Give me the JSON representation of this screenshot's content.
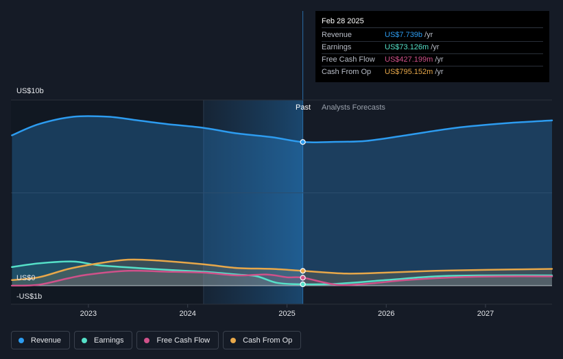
{
  "chart_data": {
    "type": "area",
    "y_labels": {
      "top": "US$10b",
      "zero": "US$0",
      "bottom": "-US$1b"
    },
    "ylim": [
      -1,
      10
    ],
    "x_ticks": [
      "2023",
      "2024",
      "2025",
      "2026",
      "2027"
    ],
    "x_tick_values": [
      2023,
      2024,
      2025,
      2026,
      2027
    ],
    "xlim": [
      2022.22,
      2027.67
    ],
    "past_label": "Past",
    "forecast_label": "Analysts Forecasts",
    "past_region_start": 2024.16,
    "divider": 2025.16,
    "series": [
      {
        "name": "Revenue",
        "color": "#2d9cf0",
        "points": [
          [
            2022.23,
            8.1
          ],
          [
            2022.5,
            8.7
          ],
          [
            2022.85,
            9.1
          ],
          [
            2023.2,
            9.1
          ],
          [
            2023.5,
            8.9
          ],
          [
            2023.8,
            8.7
          ],
          [
            2024.16,
            8.5
          ],
          [
            2024.5,
            8.2
          ],
          [
            2024.85,
            8.0
          ],
          [
            2025.16,
            7.739
          ],
          [
            2025.5,
            7.75
          ],
          [
            2025.8,
            7.8
          ],
          [
            2026.2,
            8.1
          ],
          [
            2026.7,
            8.5
          ],
          [
            2027.2,
            8.75
          ],
          [
            2027.67,
            8.9
          ]
        ]
      },
      {
        "name": "Earnings",
        "color": "#55e0c8",
        "points": [
          [
            2022.23,
            1.0
          ],
          [
            2022.5,
            1.2
          ],
          [
            2022.85,
            1.3
          ],
          [
            2023.1,
            1.1
          ],
          [
            2023.5,
            0.95
          ],
          [
            2023.8,
            0.85
          ],
          [
            2024.16,
            0.75
          ],
          [
            2024.5,
            0.6
          ],
          [
            2024.7,
            0.5
          ],
          [
            2024.9,
            0.15
          ],
          [
            2025.16,
            0.073
          ],
          [
            2025.5,
            0.1
          ],
          [
            2026.0,
            0.3
          ],
          [
            2026.5,
            0.5
          ],
          [
            2027.0,
            0.55
          ],
          [
            2027.67,
            0.55
          ]
        ]
      },
      {
        "name": "Free Cash Flow",
        "color": "#d0518a",
        "points": [
          [
            2022.23,
            0.0
          ],
          [
            2022.5,
            0.05
          ],
          [
            2022.8,
            0.4
          ],
          [
            2023.0,
            0.6
          ],
          [
            2023.4,
            0.8
          ],
          [
            2023.8,
            0.75
          ],
          [
            2024.16,
            0.7
          ],
          [
            2024.5,
            0.55
          ],
          [
            2024.8,
            0.6
          ],
          [
            2025.0,
            0.45
          ],
          [
            2025.16,
            0.427
          ],
          [
            2025.5,
            0.05
          ],
          [
            2025.8,
            0.1
          ],
          [
            2026.2,
            0.3
          ],
          [
            2026.7,
            0.45
          ],
          [
            2027.2,
            0.5
          ],
          [
            2027.67,
            0.5
          ]
        ]
      },
      {
        "name": "Cash From Op",
        "color": "#e8a84a",
        "points": [
          [
            2022.23,
            0.3
          ],
          [
            2022.5,
            0.45
          ],
          [
            2022.8,
            0.9
          ],
          [
            2023.1,
            1.2
          ],
          [
            2023.4,
            1.4
          ],
          [
            2023.7,
            1.35
          ],
          [
            2024.16,
            1.15
          ],
          [
            2024.5,
            0.95
          ],
          [
            2024.85,
            0.9
          ],
          [
            2025.16,
            0.795
          ],
          [
            2025.6,
            0.65
          ],
          [
            2026.0,
            0.7
          ],
          [
            2026.5,
            0.8
          ],
          [
            2027.0,
            0.85
          ],
          [
            2027.67,
            0.9
          ]
        ]
      }
    ]
  },
  "tooltip": {
    "date": "Feb 28 2025",
    "rows": [
      {
        "label": "Revenue",
        "value": "US$7.739b",
        "unit": "/yr",
        "color": "#2d9cf0"
      },
      {
        "label": "Earnings",
        "value": "US$73.126m",
        "unit": "/yr",
        "color": "#55e0c8"
      },
      {
        "label": "Free Cash Flow",
        "value": "US$427.199m",
        "unit": "/yr",
        "color": "#d0518a"
      },
      {
        "label": "Cash From Op",
        "value": "US$795.152m",
        "unit": "/yr",
        "color": "#e8a84a"
      }
    ]
  },
  "legend": [
    {
      "label": "Revenue",
      "color": "#2d9cf0"
    },
    {
      "label": "Earnings",
      "color": "#55e0c8"
    },
    {
      "label": "Free Cash Flow",
      "color": "#d0518a"
    },
    {
      "label": "Cash From Op",
      "color": "#e8a84a"
    }
  ]
}
